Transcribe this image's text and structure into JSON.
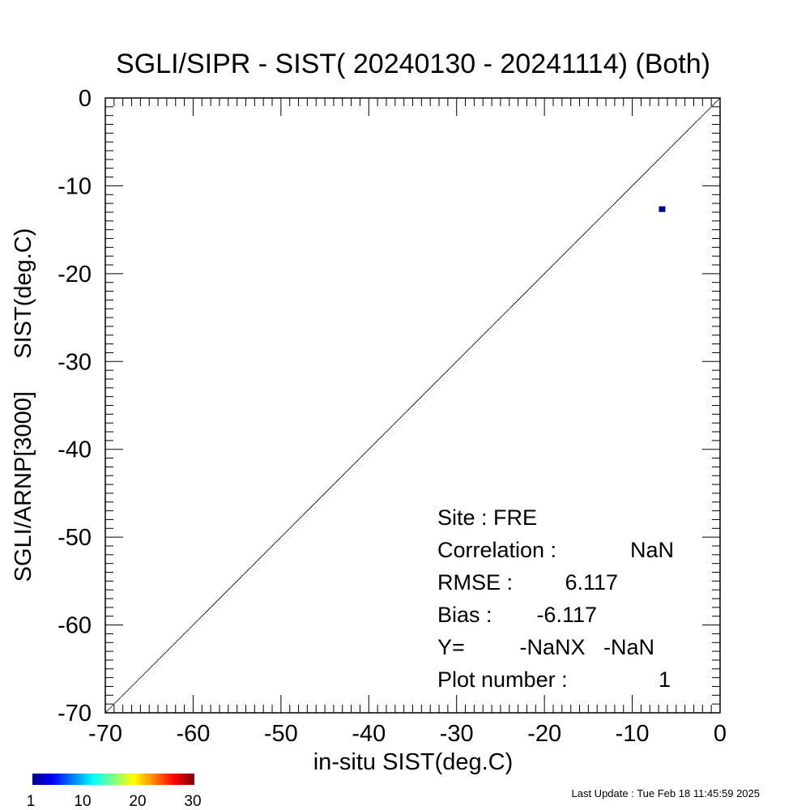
{
  "chart_data": {
    "type": "scatter",
    "title": "SGLI/SIPR - SIST( 20240130 - 20241114) (Both)",
    "xlabel": "in-situ SIST(deg.C)",
    "ylabel": "SGLI/ARNP[3000]     SIST(deg.C)",
    "xlim": [
      -70,
      0
    ],
    "ylim": [
      -70,
      0
    ],
    "xticks": [
      -70,
      -60,
      -50,
      -40,
      -30,
      -20,
      -10,
      0
    ],
    "yticks": [
      0,
      -10,
      -20,
      -30,
      -40,
      -50,
      -60,
      -70
    ],
    "grid": false,
    "reference_line": "1:1",
    "points": [
      {
        "x": -6.6,
        "y": -12.7,
        "count": 1,
        "color": "#00008f"
      }
    ],
    "stats": [
      {
        "label": "Site : FRE",
        "value": ""
      },
      {
        "label": "Correlation :",
        "value": "NaN"
      },
      {
        "label": "RMSE :",
        "value": "6.117"
      },
      {
        "label": "Bias :",
        "value": "-6.117"
      },
      {
        "label": "Y=",
        "value": "-NaNX   -NaN"
      },
      {
        "label": "Plot number :",
        "value": "1"
      }
    ],
    "colorbar": {
      "ticks": [
        "1",
        "10",
        "20",
        "30"
      ],
      "colors": [
        "#00008f",
        "#0000ff",
        "#0080ff",
        "#00ffff",
        "#80ff80",
        "#ffff00",
        "#ff8000",
        "#ff0000",
        "#800000"
      ]
    },
    "footer": "Last Update : Tue Feb 18 11:45:59 2025"
  }
}
